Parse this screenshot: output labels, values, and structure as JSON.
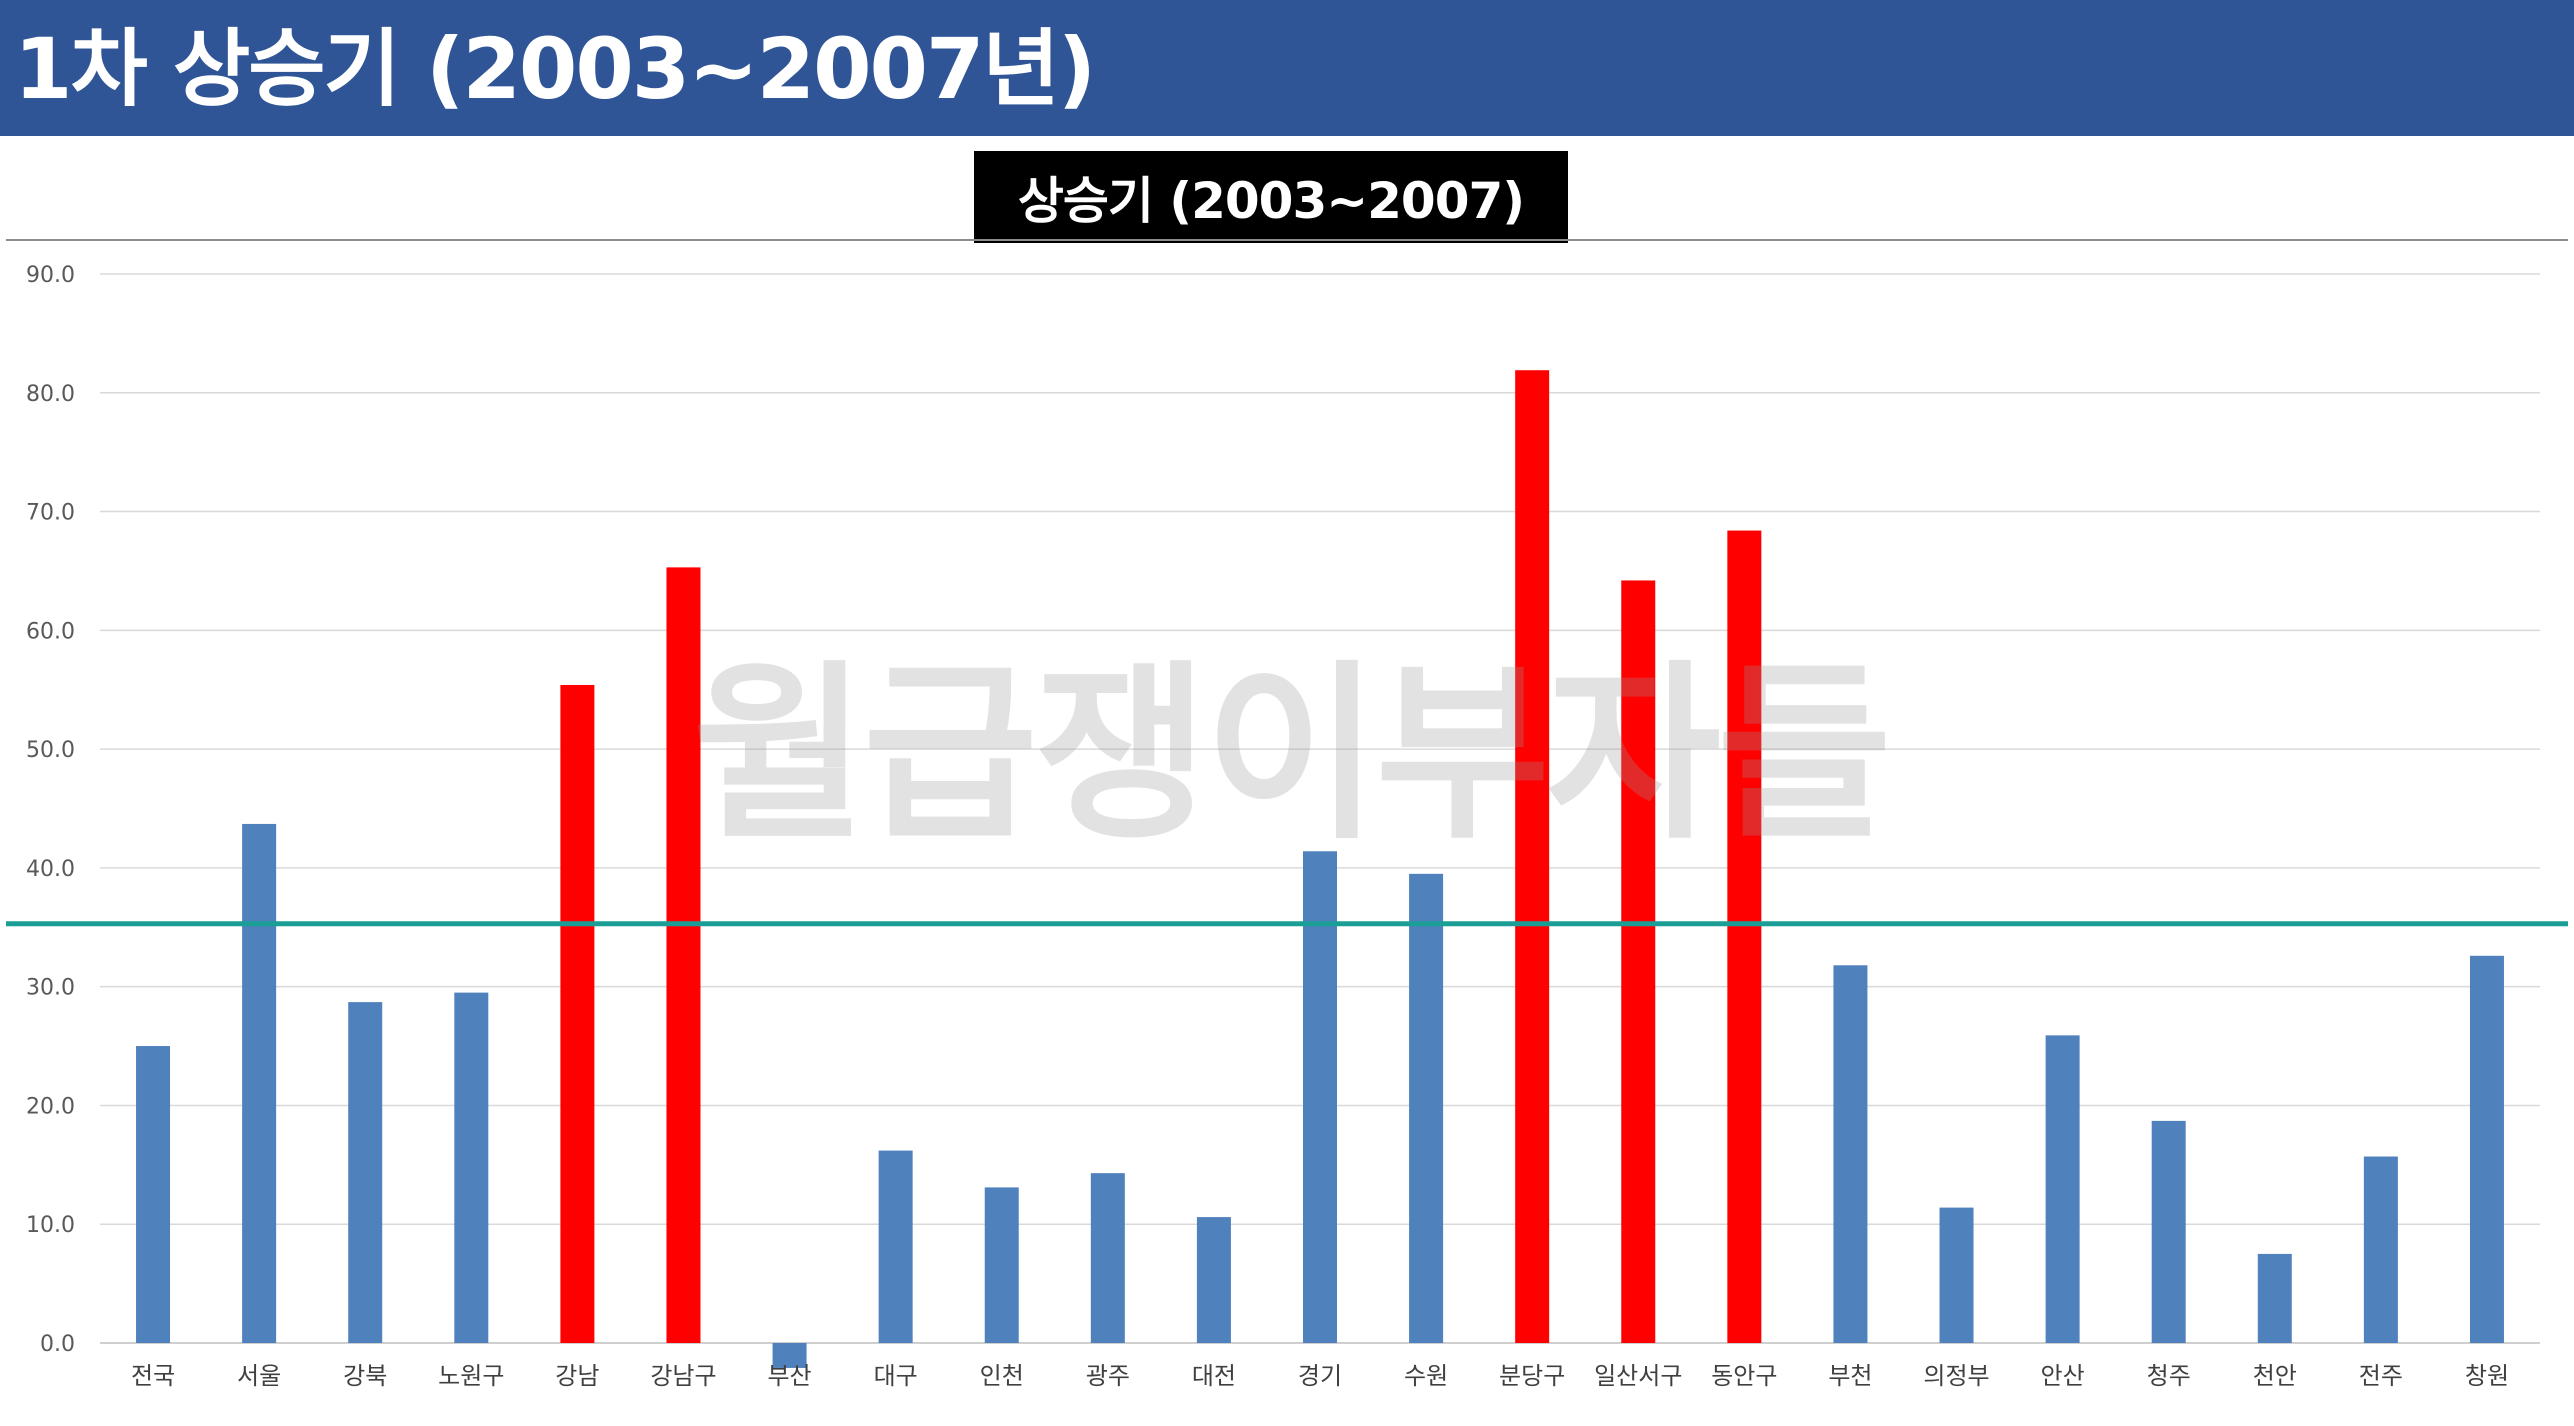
{
  "header": {
    "title": "1차 상승기 (2003~2007년)"
  },
  "watermark": "월급쟁이부자들",
  "colors": {
    "header_bg": "#2f5597",
    "bar_default": "#4f81bd",
    "bar_highlight": "#ff0000",
    "reference_line": "#1a9e96"
  },
  "chart_data": {
    "type": "bar",
    "title": "상승기 (2003~2007)",
    "xlabel": "",
    "ylabel": "",
    "ylim": [
      0,
      90
    ],
    "yticks": [
      "0.0",
      "10.0",
      "20.0",
      "30.0",
      "40.0",
      "50.0",
      "60.0",
      "70.0",
      "80.0",
      "90.0"
    ],
    "grid": true,
    "categories": [
      "전국",
      "서울",
      "강북",
      "노원구",
      "강남",
      "강남구",
      "부산",
      "대구",
      "인천",
      "광주",
      "대전",
      "경기",
      "수원",
      "분당구",
      "일산서구",
      "동안구",
      "부천",
      "의정부",
      "안산",
      "청주",
      "천안",
      "전주",
      "창원"
    ],
    "values": [
      25.0,
      43.7,
      28.7,
      29.5,
      55.4,
      65.3,
      -2.1,
      16.2,
      13.1,
      14.3,
      10.6,
      41.4,
      39.5,
      81.9,
      64.2,
      68.4,
      31.8,
      11.4,
      25.9,
      18.7,
      7.5,
      15.7,
      32.6
    ],
    "highlighted": [
      "강남",
      "강남구",
      "분당구",
      "일산서구",
      "동안구"
    ],
    "reference_line": 35.3
  }
}
